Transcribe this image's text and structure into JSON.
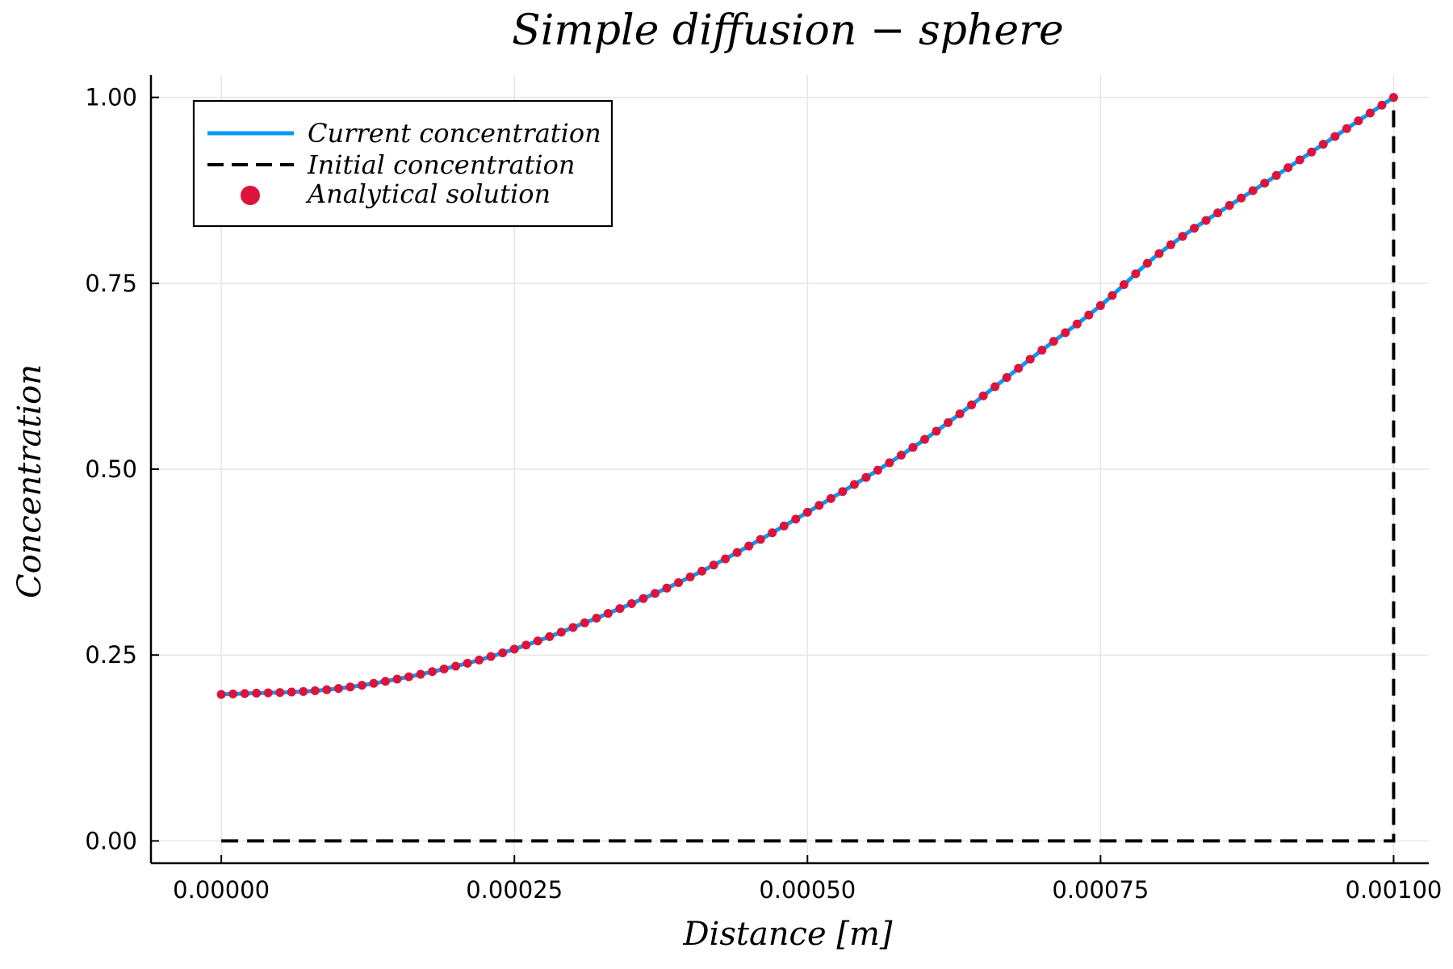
{
  "chart_data": {
    "type": "line",
    "title": "Simple diffusion − sphere",
    "xlabel": "Distance [m]",
    "ylabel": "Concentration",
    "xlim": [
      -6e-05,
      0.00103
    ],
    "ylim": [
      -0.03,
      1.03
    ],
    "x_ticks": [
      "0.00000",
      "0.00025",
      "0.00050",
      "0.00075",
      "0.00100"
    ],
    "x_tick_values": [
      0,
      0.00025,
      0.0005,
      0.00075,
      0.001
    ],
    "y_ticks": [
      "0.00",
      "0.25",
      "0.50",
      "0.75",
      "1.00"
    ],
    "y_tick_values": [
      0,
      0.25,
      0.5,
      0.75,
      1.0
    ],
    "grid": true,
    "legend_position": "top-left",
    "series": [
      {
        "name": "Current concentration",
        "style": "line",
        "color": "#009af9",
        "x": [
          0,
          0.0001,
          0.0002,
          0.00025,
          0.0003,
          0.0004,
          0.0005,
          0.0006,
          0.0007,
          0.00075,
          0.0008,
          0.0009,
          0.001
        ],
        "y": [
          0.197,
          0.205,
          0.235,
          0.258,
          0.287,
          0.355,
          0.442,
          0.54,
          0.66,
          0.72,
          0.79,
          0.895,
          1.0
        ]
      },
      {
        "name": "Initial concentration",
        "style": "dashed",
        "color": "#000000",
        "x": [
          0,
          0.001,
          0.001
        ],
        "y": [
          0,
          0,
          1.0
        ]
      },
      {
        "name": "Analytical solution",
        "style": "scatter",
        "color": "#dc143c",
        "x": [
          0,
          0.0001,
          0.0002,
          0.00025,
          0.0003,
          0.0004,
          0.0005,
          0.0006,
          0.0007,
          0.00075,
          0.0008,
          0.0009,
          0.001
        ],
        "y": [
          0.197,
          0.205,
          0.235,
          0.258,
          0.287,
          0.355,
          0.442,
          0.54,
          0.66,
          0.72,
          0.79,
          0.895,
          1.0
        ],
        "n_points": 101
      }
    ]
  }
}
